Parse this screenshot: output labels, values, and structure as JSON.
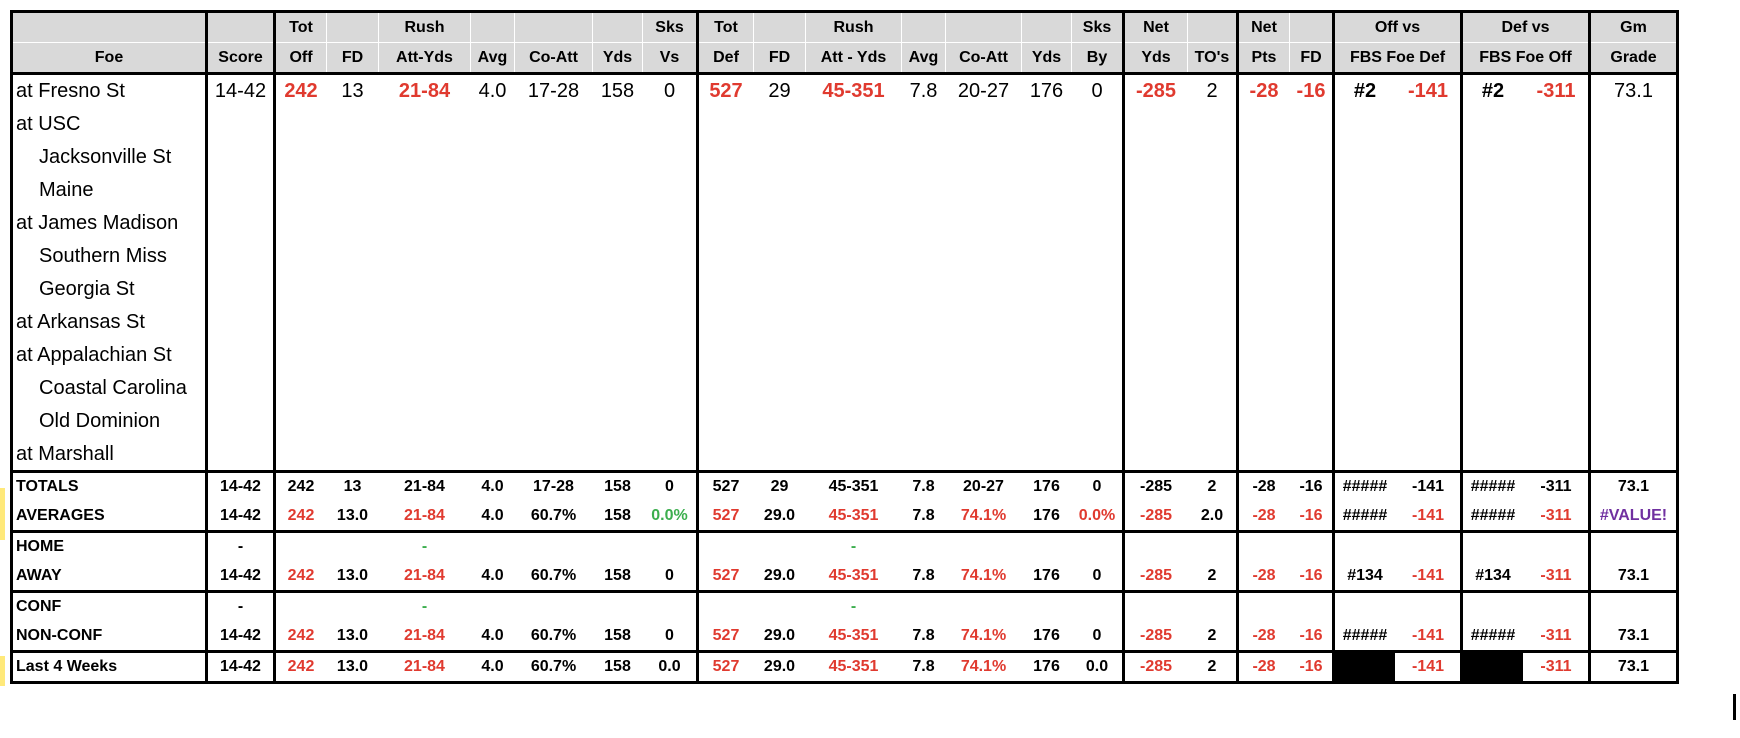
{
  "headers": {
    "row1": [
      "",
      "",
      "Tot",
      "",
      "Rush",
      "",
      "",
      "",
      "Sks",
      "Tot",
      "",
      "Rush",
      "",
      "",
      "",
      "Sks",
      "Net",
      "",
      "Net",
      "",
      "Off vs",
      "",
      "Def vs",
      "",
      "Gm"
    ],
    "row2": [
      "Foe",
      "Score",
      "Off",
      "FD",
      "Att-Yds",
      "Avg",
      "Co-Att",
      "Yds",
      "Vs",
      "Def",
      "FD",
      "Att - Yds",
      "Avg",
      "Co-Att",
      "Yds",
      "By",
      "Yds",
      "TO's",
      "Pts",
      "FD",
      "FBS Foe Def",
      "",
      "FBS Foe Off",
      "",
      "Grade"
    ]
  },
  "games": [
    {
      "foe": "at Fresno St",
      "indent": false,
      "cells": [
        "14-42",
        "242",
        "13",
        "21-84",
        "4.0",
        "17-28",
        "158",
        "0",
        "527",
        "29",
        "45-351",
        "7.8",
        "20-27",
        "176",
        "0",
        "-285",
        "2",
        "-28",
        "-16",
        "#2",
        "-141",
        "#2",
        "-311",
        "73.1"
      ]
    },
    {
      "foe": "at USC",
      "indent": false,
      "cells": []
    },
    {
      "foe": "Jacksonville St",
      "indent": true,
      "cells": []
    },
    {
      "foe": "Maine",
      "indent": true,
      "cells": []
    },
    {
      "foe": "at James Madison",
      "indent": false,
      "cells": []
    },
    {
      "foe": "Southern Miss",
      "indent": true,
      "cells": []
    },
    {
      "foe": "Georgia St",
      "indent": true,
      "cells": []
    },
    {
      "foe": "at Arkansas St",
      "indent": false,
      "cells": []
    },
    {
      "foe": "at Appalachian St",
      "indent": false,
      "cells": []
    },
    {
      "foe": "Coastal Carolina",
      "indent": true,
      "cells": []
    },
    {
      "foe": "Old Dominion",
      "indent": true,
      "cells": []
    },
    {
      "foe": "at Marshall",
      "indent": false,
      "cells": []
    }
  ],
  "summary": [
    {
      "label": "TOTALS",
      "cells": [
        "14-42",
        "242",
        "13",
        "21-84",
        "4.0",
        "17-28",
        "158",
        "0",
        "527",
        "29",
        "45-351",
        "7.8",
        "20-27",
        "176",
        "0",
        "-285",
        "2",
        "-28",
        "-16",
        "#####",
        "-141",
        "#####",
        "-311",
        "73.1"
      ]
    },
    {
      "label": "AVERAGES",
      "cells": [
        "14-42",
        "242",
        "13.0",
        "21-84",
        "4.0",
        "60.7%",
        "158",
        "0.0%",
        "527",
        "29.0",
        "45-351",
        "7.8",
        "74.1%",
        "176",
        "0.0%",
        "-285",
        "2.0",
        "-28",
        "-16",
        "#####",
        "-141",
        "#####",
        "-311",
        "#VALUE!"
      ]
    },
    {
      "label": "HOME",
      "cells": [
        "-",
        "",
        "",
        "-",
        "",
        "",
        "",
        "",
        "",
        "",
        "-",
        "",
        "",
        "",
        "",
        "",
        "",
        "",
        "",
        "",
        "",
        "",
        "",
        ""
      ]
    },
    {
      "label": "AWAY",
      "cells": [
        "14-42",
        "242",
        "13.0",
        "21-84",
        "4.0",
        "60.7%",
        "158",
        "0",
        "527",
        "29.0",
        "45-351",
        "7.8",
        "74.1%",
        "176",
        "0",
        "-285",
        "2",
        "-28",
        "-16",
        "#134",
        "-141",
        "#134",
        "-311",
        "73.1"
      ]
    },
    {
      "label": "CONF",
      "cells": [
        "-",
        "",
        "",
        "-",
        "",
        "",
        "",
        "",
        "",
        "",
        "-",
        "",
        "",
        "",
        "",
        "",
        "",
        "",
        "",
        "",
        "",
        "",
        "",
        ""
      ]
    },
    {
      "label": "NON-CONF",
      "cells": [
        "14-42",
        "242",
        "13.0",
        "21-84",
        "4.0",
        "60.7%",
        "158",
        "0",
        "527",
        "29.0",
        "45-351",
        "7.8",
        "74.1%",
        "176",
        "0",
        "-285",
        "2",
        "-28",
        "-16",
        "#####",
        "-141",
        "#####",
        "-311",
        "73.1"
      ]
    },
    {
      "label": "Last 4 Weeks",
      "cells": [
        "14-42",
        "242",
        "13.0",
        "21-84",
        "4.0",
        "60.7%",
        "158",
        "0.0",
        "527",
        "29.0",
        "45-351",
        "7.8",
        "74.1%",
        "176",
        "0.0",
        "-285",
        "2",
        "-28",
        "-16",
        "",
        "-141",
        "",
        "-311",
        "73.1"
      ]
    }
  ],
  "stray_text": "1",
  "colors": {
    "negative": "#e03a2f",
    "positive": "#3cae4e",
    "error": "#7030a0",
    "header_bg": "#d9d9d9"
  }
}
